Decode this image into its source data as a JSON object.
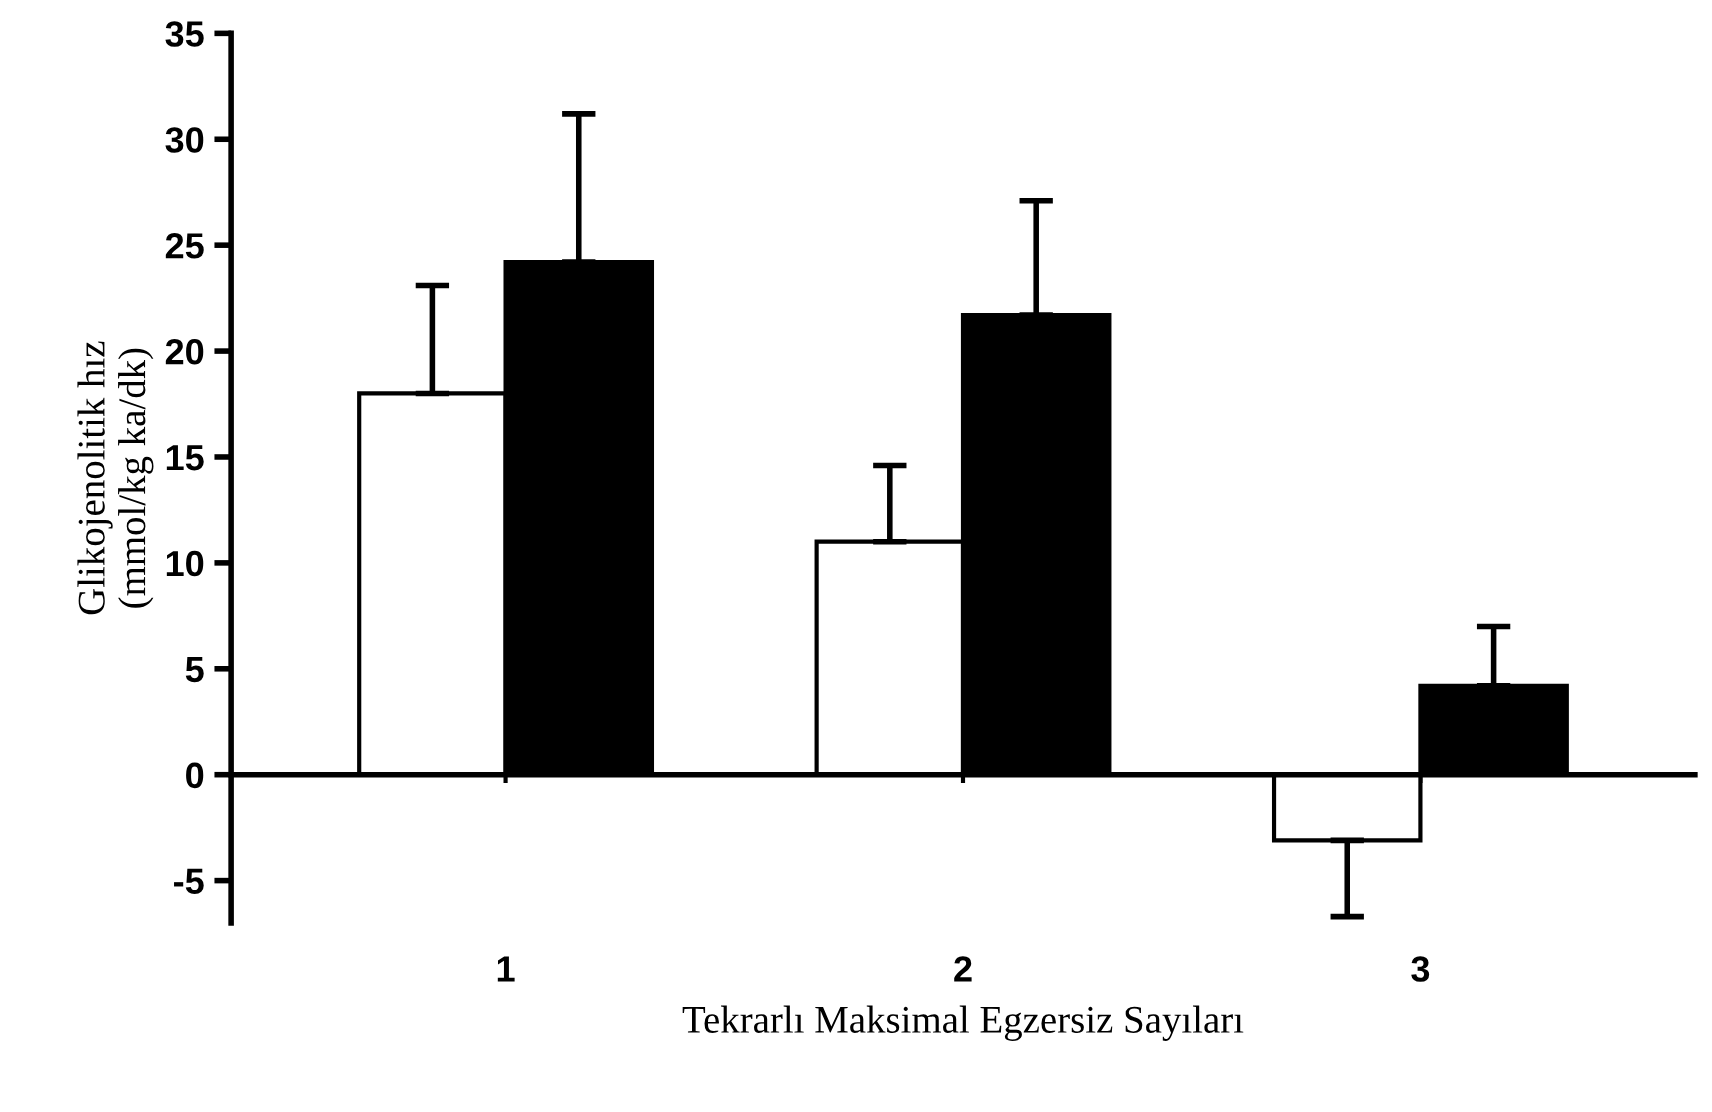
{
  "chart_data": {
    "type": "bar",
    "categories": [
      "1",
      "2",
      "3"
    ],
    "xlabel": "Tekrarlı Maksimal Egzersiz Sayıları",
    "ylabel": "Glikojenolitik hız\n(mmol/kg ka/dk)",
    "series": [
      {
        "color": "#ffffff",
        "values": [
          18.0,
          11.0,
          -3.1
        ],
        "errors": [
          [
            18.0,
            23.1
          ],
          [
            11.0,
            14.6
          ],
          [
            -6.7,
            -3.1
          ]
        ]
      },
      {
        "color": "#000000",
        "values": [
          24.2,
          21.7,
          4.2
        ],
        "errors": [
          [
            24.2,
            31.2
          ],
          [
            21.7,
            27.1
          ],
          [
            4.2,
            7.0
          ]
        ]
      }
    ],
    "ylim": [
      -7,
      35
    ],
    "yticks": [
      -5,
      0,
      5,
      10,
      15,
      20,
      25,
      30,
      35
    ],
    "legend": false
  }
}
